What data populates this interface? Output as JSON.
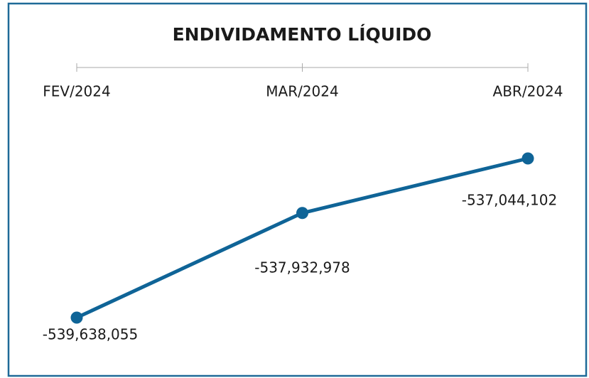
{
  "chart_data": {
    "type": "line",
    "title": "ENDIVIDAMENTO LÍQUIDO",
    "categories": [
      "FEV/2024",
      "MAR/2024",
      "ABR/2024"
    ],
    "series": [
      {
        "name": null,
        "color": "#0f6497",
        "values": [
          -539638055,
          -537932978,
          -537044102
        ],
        "value_labels": [
          "-539,638,055",
          "-537,932,978",
          "-537,044,102"
        ]
      }
    ]
  }
}
